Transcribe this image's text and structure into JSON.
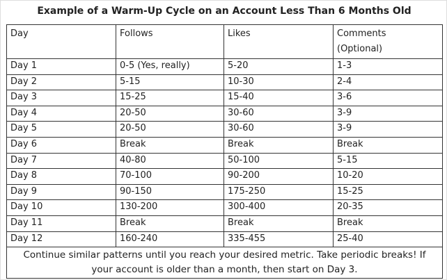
{
  "title": "Example of a Warm-Up Cycle on an Account Less Than 6 Months Old",
  "table": {
    "header": [
      "Day",
      "Follows",
      "Likes",
      "Comments (Optional)"
    ],
    "rows": [
      [
        "Day 1",
        "0-5 (Yes, really)",
        "5-20",
        "1-3"
      ],
      [
        "Day 2",
        "5-15",
        "10-30",
        "2-4"
      ],
      [
        "Day 3",
        "15-25",
        "15-40",
        "3-6"
      ],
      [
        "Day 4",
        "20-50",
        "30-60",
        "3-9"
      ],
      [
        "Day 5",
        "20-50",
        "30-60",
        "3-9"
      ],
      [
        "Day 6",
        "Break",
        "Break",
        "Break"
      ],
      [
        "Day 7",
        "40-80",
        "50-100",
        "5-15"
      ],
      [
        "Day 8",
        "70-100",
        "90-200",
        "10-20"
      ],
      [
        "Day 9",
        "90-150",
        "175-250",
        "15-25"
      ],
      [
        "Day 10",
        "130-200",
        "300-400",
        "20-35"
      ],
      [
        "Day 11",
        "Break",
        "Break",
        "Break"
      ],
      [
        "Day 12",
        "160-240",
        "335-455",
        "25-40"
      ]
    ],
    "footer": "Continue similar patterns until you reach your desired metric. Take periodic breaks! If your account is older than a month, then start on Day 3."
  }
}
